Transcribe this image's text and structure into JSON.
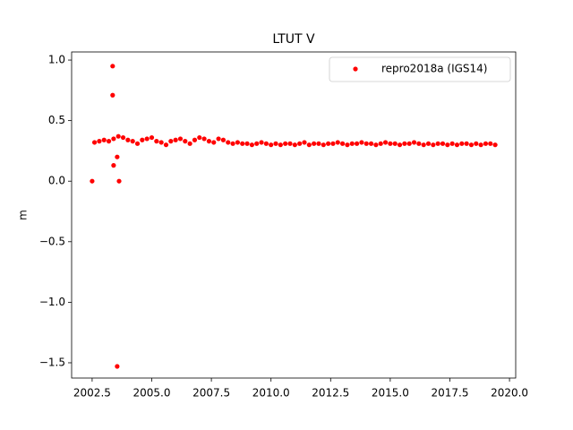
{
  "chart_data": {
    "type": "scatter",
    "title": "LTUT V",
    "ylabel": "m",
    "xlim": [
      2001.64,
      2020.26
    ],
    "ylim": [
      -1.626,
      1.067
    ],
    "xticks": [
      2002.5,
      {
        "value": 2005,
        "label": "2005.0"
      },
      2007.5,
      {
        "value": 2010,
        "label": "2010.0"
      },
      2012.5,
      {
        "value": 2015,
        "label": "2015.0"
      },
      2017.5,
      {
        "value": 2020,
        "label": "2020.0"
      }
    ],
    "yticks": [
      {
        "value": 1,
        "label": "1.0"
      },
      0.5,
      {
        "value": 0,
        "label": "0.0"
      },
      {
        "value": -0.5,
        "label": "−0.5"
      },
      {
        "value": -1,
        "label": "−1.0"
      },
      {
        "value": -1.5,
        "label": "−1.5"
      }
    ],
    "legend": "upper right",
    "series": [
      {
        "name": "repro2018a (IGS14)",
        "color": "#ff0000",
        "x": [
          2002.6,
          2002.8,
          2003.0,
          2003.2,
          2003.4,
          2003.6,
          2003.8,
          2004.0,
          2004.2,
          2004.4,
          2004.6,
          2004.8,
          2005.0,
          2005.2,
          2005.4,
          2005.6,
          2005.8,
          2006.0,
          2006.2,
          2006.4,
          2006.6,
          2006.8,
          2007.0,
          2007.2,
          2007.4,
          2007.6,
          2007.8,
          2008.0,
          2008.2,
          2008.4,
          2008.6,
          2008.8,
          2009.0,
          2009.2,
          2009.4,
          2009.6,
          2009.8,
          2010.0,
          2010.2,
          2010.4,
          2010.6,
          2010.8,
          2011.0,
          2011.2,
          2011.4,
          2011.6,
          2011.8,
          2012.0,
          2012.2,
          2012.4,
          2012.6,
          2012.8,
          2013.0,
          2013.2,
          2013.4,
          2013.6,
          2013.8,
          2014.0,
          2014.2,
          2014.4,
          2014.6,
          2014.8,
          2015.0,
          2015.2,
          2015.4,
          2015.6,
          2015.8,
          2016.0,
          2016.2,
          2016.4,
          2016.6,
          2016.8,
          2017.0,
          2017.2,
          2017.4,
          2017.6,
          2017.8,
          2018.0,
          2018.2,
          2018.4,
          2018.6,
          2018.8,
          2019.0,
          2019.2,
          2019.4,
          2002.5,
          2003.36,
          2003.36,
          2003.4,
          2003.55,
          2003.63,
          2003.55
        ],
        "values": [
          0.32,
          0.33,
          0.34,
          0.33,
          0.35,
          0.37,
          0.36,
          0.34,
          0.33,
          0.31,
          0.34,
          0.35,
          0.36,
          0.33,
          0.32,
          0.3,
          0.33,
          0.34,
          0.35,
          0.33,
          0.31,
          0.34,
          0.36,
          0.35,
          0.33,
          0.32,
          0.35,
          0.34,
          0.32,
          0.31,
          0.32,
          0.31,
          0.31,
          0.3,
          0.31,
          0.32,
          0.31,
          0.3,
          0.31,
          0.3,
          0.31,
          0.31,
          0.3,
          0.31,
          0.32,
          0.3,
          0.31,
          0.31,
          0.3,
          0.31,
          0.31,
          0.32,
          0.31,
          0.3,
          0.31,
          0.31,
          0.32,
          0.31,
          0.31,
          0.3,
          0.31,
          0.32,
          0.31,
          0.31,
          0.3,
          0.31,
          0.31,
          0.32,
          0.31,
          0.3,
          0.31,
          0.3,
          0.31,
          0.31,
          0.3,
          0.31,
          0.3,
          0.31,
          0.31,
          0.3,
          0.31,
          0.3,
          0.31,
          0.31,
          0.3,
          0.0,
          0.95,
          0.71,
          0.13,
          0.2,
          0.0,
          -1.53
        ]
      }
    ]
  }
}
